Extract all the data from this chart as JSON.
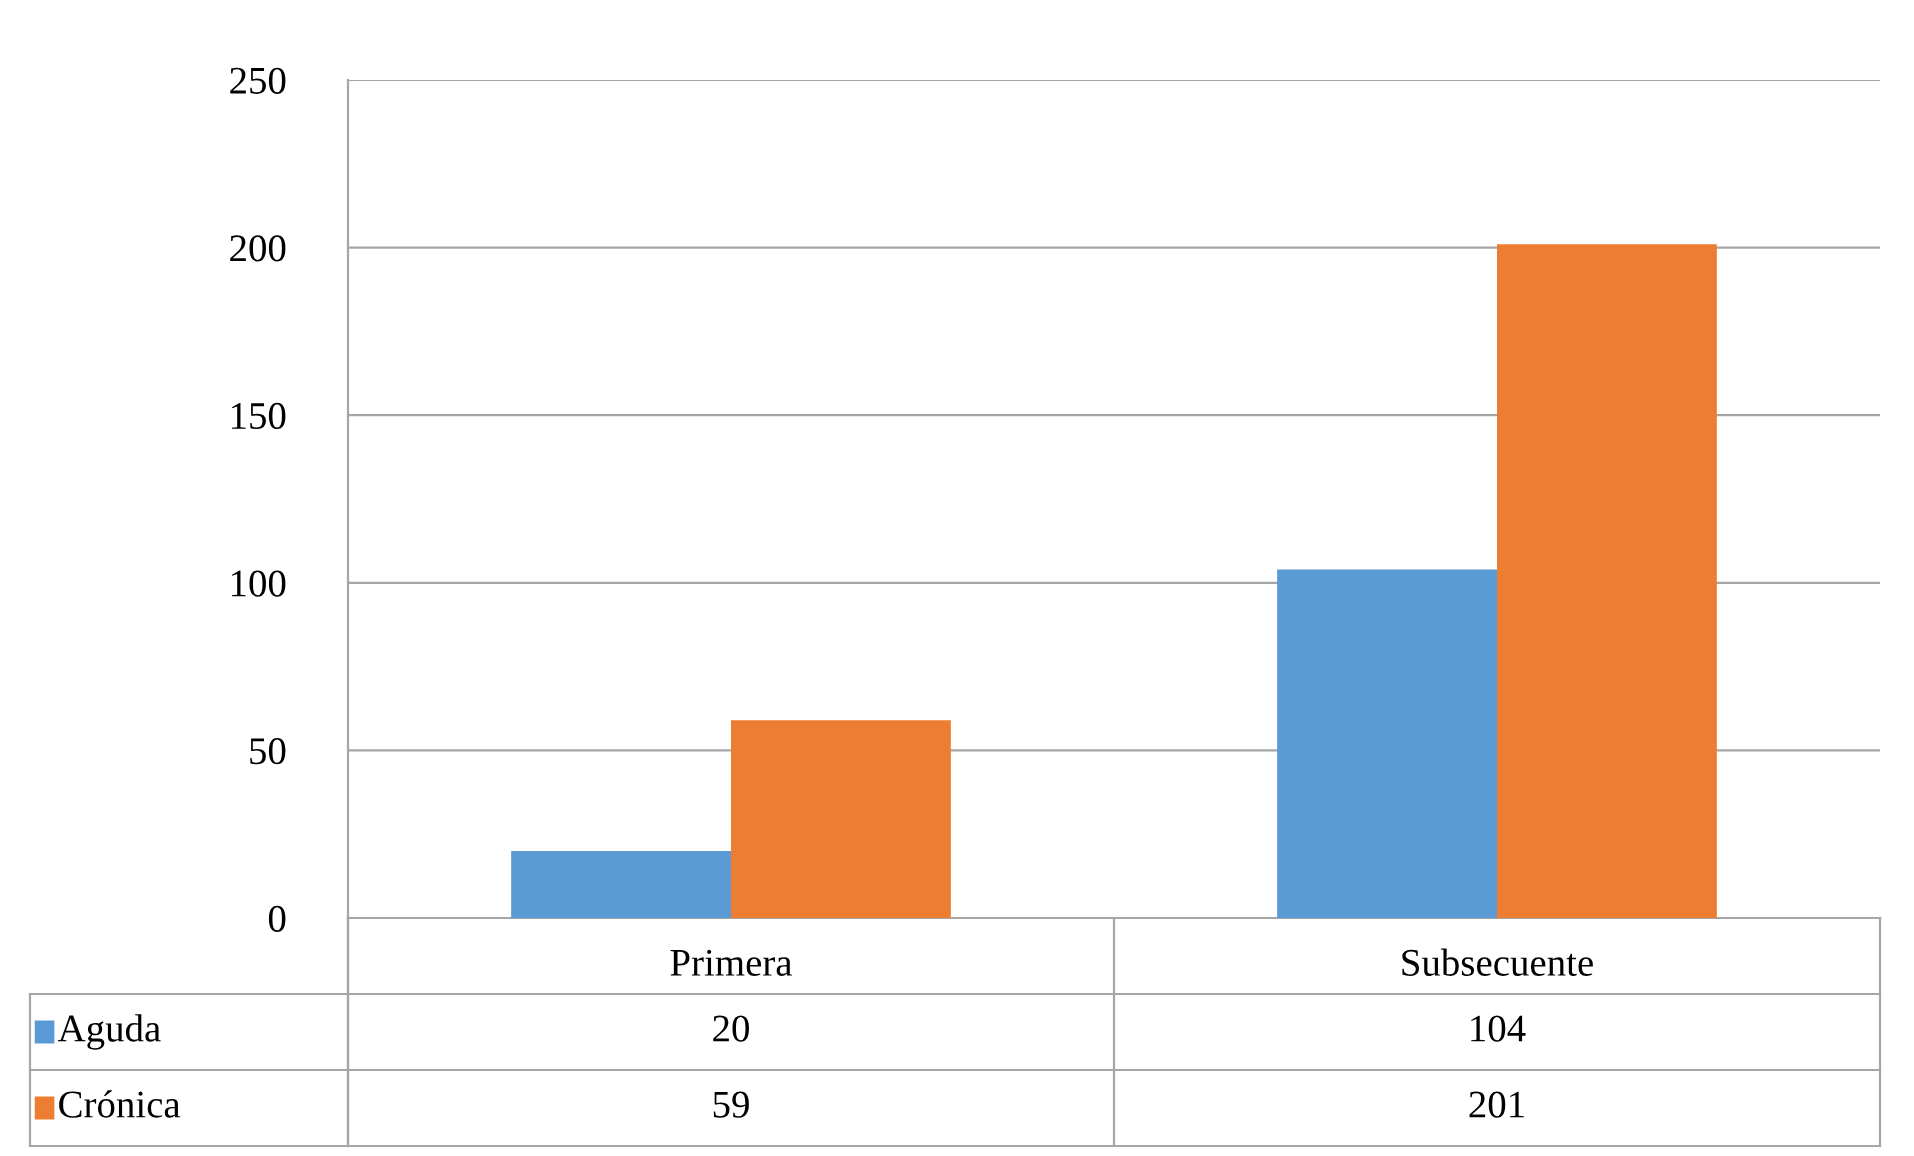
{
  "chart_data": {
    "type": "bar",
    "categories": [
      "Primera",
      "Subsecuente"
    ],
    "series": [
      {
        "name": "Aguda",
        "color": "#5b9bd5",
        "values": [
          20,
          104
        ]
      },
      {
        "name": "Crónica",
        "color": "#ed7d31",
        "values": [
          59,
          201
        ]
      }
    ],
    "ylim": [
      0,
      250
    ],
    "yticks": [
      0,
      50,
      100,
      150,
      200,
      250
    ],
    "grid": "y",
    "data_labels": true,
    "legend": "bottom"
  }
}
